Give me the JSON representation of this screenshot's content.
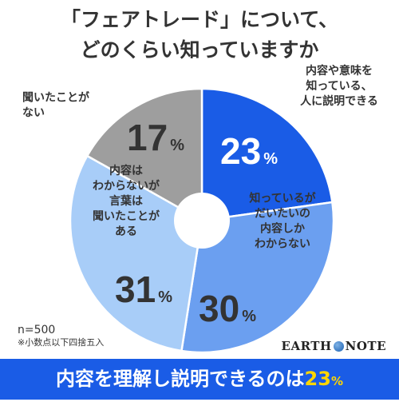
{
  "title": {
    "line1": "「フェアトレード」について、",
    "line2": "どのくらい知っていますか"
  },
  "chart_data": {
    "type": "pie",
    "slices": [
      {
        "label": [
          "内容や意味を",
          "知っている、",
          "人に説明できる"
        ],
        "value": 23,
        "color": "#1a5ce6",
        "value_color": "#ffffff"
      },
      {
        "label": [
          "知っているが",
          "だいたいの",
          "内容しか",
          "わからない"
        ],
        "value": 30,
        "color": "#6b9ff0",
        "value_color": "#333333"
      },
      {
        "label": [
          "内容は",
          "わからないが",
          "言葉は",
          "聞いたことが",
          "ある"
        ],
        "value": 31,
        "color": "#a8cdf8",
        "value_color": "#333333"
      },
      {
        "label": [
          "聞いたことが",
          "ない"
        ],
        "value": 17,
        "color": "#9e9e9e",
        "value_color": "#333333"
      }
    ],
    "unit": "%",
    "start": "12 o'clock",
    "direction": "clockwise",
    "donut_hole": true
  },
  "notes": {
    "n": "n=500",
    "rounding": "※小数点以下四捨五入"
  },
  "logo": {
    "left": "EARTH",
    "right": "NOTE"
  },
  "banner": {
    "text": "内容を理解し説明できるのは",
    "value": "23",
    "unit": "%"
  }
}
